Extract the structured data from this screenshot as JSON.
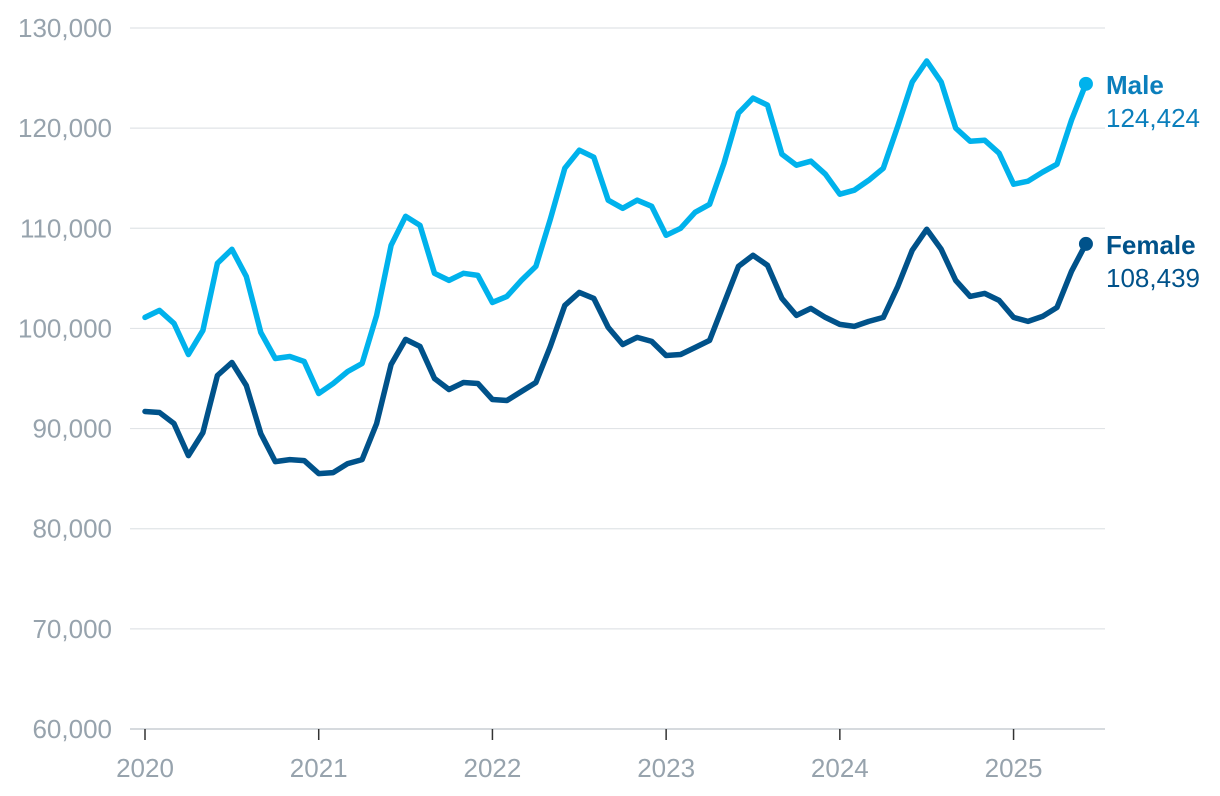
{
  "chart_data": {
    "type": "line",
    "title": "",
    "xlabel": "",
    "ylabel": "",
    "ylim": [
      60000,
      130000
    ],
    "yticks": [
      60000,
      70000,
      80000,
      90000,
      100000,
      110000,
      120000,
      130000
    ],
    "ytick_labels": [
      "60,000",
      "70,000",
      "80,000",
      "90,000",
      "100,000",
      "110,000",
      "120,000",
      "130,000"
    ],
    "xlim": [
      2020.0,
      2025.417
    ],
    "xticks": [
      2020,
      2021,
      2022,
      2023,
      2024,
      2025
    ],
    "xtick_labels": [
      "2020",
      "2021",
      "2022",
      "2023",
      "2024",
      "2025"
    ],
    "grid": true,
    "legend": "end-of-line labels",
    "series": [
      {
        "name": "Male",
        "color": "#00b2ec",
        "label_color": "#0b7fbc",
        "end_label": "Male",
        "end_value_label": "124,424",
        "values": [
          101100,
          101800,
          100500,
          97400,
          99800,
          106500,
          107900,
          105200,
          99600,
          97000,
          97200,
          96700,
          93500,
          94500,
          95700,
          96500,
          101300,
          108300,
          111200,
          110300,
          105500,
          104800,
          105500,
          105300,
          102600,
          103200,
          104800,
          106200,
          110900,
          116000,
          117800,
          117100,
          112800,
          112000,
          112800,
          112200,
          109300,
          110000,
          111600,
          112400,
          116500,
          121500,
          123000,
          122300,
          117400,
          116300,
          116700,
          115400,
          113400,
          113800,
          114800,
          116000,
          120200,
          124600,
          126700,
          124600,
          120000,
          118700,
          118800,
          117500,
          114400,
          114700,
          115600,
          116400,
          120800,
          124424
        ]
      },
      {
        "name": "Female",
        "color": "#00528a",
        "label_color": "#00528a",
        "end_label": "Female",
        "end_value_label": "108,439",
        "values": [
          91700,
          91600,
          90500,
          87300,
          89600,
          95300,
          96600,
          94300,
          89500,
          86700,
          86900,
          86800,
          85500,
          85600,
          86500,
          86900,
          90500,
          96400,
          98900,
          98200,
          95000,
          93900,
          94600,
          94500,
          92900,
          92800,
          93700,
          94600,
          98200,
          102300,
          103600,
          103000,
          100100,
          98400,
          99100,
          98700,
          97300,
          97400,
          98100,
          98800,
          102500,
          106200,
          107300,
          106300,
          103000,
          101300,
          102000,
          101100,
          100400,
          100200,
          100700,
          101100,
          104200,
          107800,
          109900,
          107900,
          104800,
          103200,
          103500,
          102800,
          101100,
          100700,
          101200,
          102100,
          105700,
          108439
        ]
      }
    ]
  }
}
